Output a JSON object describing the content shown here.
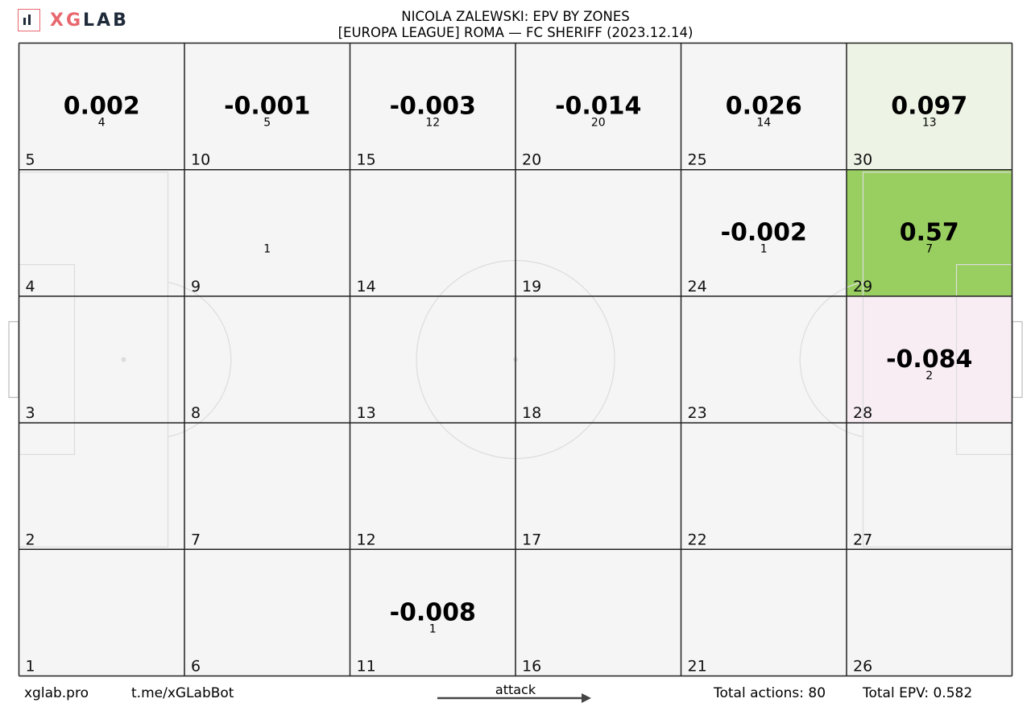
{
  "brand": {
    "logo_x": "X",
    "logo_g": "G",
    "logo_lab": "LAB"
  },
  "header": {
    "title": "NICOLA ZALEWSKI: EPV BY ZONES",
    "subtitle": "[EUROPA LEAGUE] ROMA —  FC SHERIFF (2023.12.14)"
  },
  "footer": {
    "site": "xglab.pro",
    "bot": "t.me/xGLabBot",
    "attack": "attack",
    "total_actions": "Total actions: 80",
    "total_epv": "Total EPV: 0.582"
  },
  "colors": {
    "neutral_cell": "#f5f5f5",
    "positive_light": "#eef4e5",
    "positive_strong": "#99cf61",
    "negative_light": "#f7edf3",
    "grid_line": "#222222",
    "pitch_line": "#dcdcdc"
  },
  "chart_data": {
    "type": "heatmap",
    "title": "NICOLA ZALEWSKI: EPV BY ZONES",
    "subtitle": "[EUROPA LEAGUE] ROMA —  FC SHERIFF (2023.12.14)",
    "grid": {
      "columns": 6,
      "rows": 5
    },
    "zones": [
      {
        "zone": 1,
        "epv": "",
        "actions": ""
      },
      {
        "zone": 2,
        "epv": "",
        "actions": ""
      },
      {
        "zone": 3,
        "epv": "",
        "actions": ""
      },
      {
        "zone": 4,
        "epv": "",
        "actions": ""
      },
      {
        "zone": 5,
        "epv": "0.002",
        "actions": "4"
      },
      {
        "zone": 6,
        "epv": "",
        "actions": ""
      },
      {
        "zone": 7,
        "epv": "",
        "actions": ""
      },
      {
        "zone": 8,
        "epv": "",
        "actions": ""
      },
      {
        "zone": 9,
        "epv": "",
        "actions": "1"
      },
      {
        "zone": 10,
        "epv": "-0.001",
        "actions": "5"
      },
      {
        "zone": 11,
        "epv": "-0.008",
        "actions": "1"
      },
      {
        "zone": 12,
        "epv": "",
        "actions": ""
      },
      {
        "zone": 13,
        "epv": "",
        "actions": ""
      },
      {
        "zone": 14,
        "epv": "",
        "actions": ""
      },
      {
        "zone": 15,
        "epv": "-0.003",
        "actions": "12"
      },
      {
        "zone": 16,
        "epv": "",
        "actions": ""
      },
      {
        "zone": 17,
        "epv": "",
        "actions": ""
      },
      {
        "zone": 18,
        "epv": "",
        "actions": ""
      },
      {
        "zone": 19,
        "epv": "",
        "actions": ""
      },
      {
        "zone": 20,
        "epv": "-0.014",
        "actions": "20"
      },
      {
        "zone": 21,
        "epv": "",
        "actions": ""
      },
      {
        "zone": 22,
        "epv": "",
        "actions": ""
      },
      {
        "zone": 23,
        "epv": "",
        "actions": ""
      },
      {
        "zone": 24,
        "epv": "-0.002",
        "actions": "1"
      },
      {
        "zone": 25,
        "epv": "0.026",
        "actions": "14"
      },
      {
        "zone": 26,
        "epv": "",
        "actions": ""
      },
      {
        "zone": 27,
        "epv": "",
        "actions": ""
      },
      {
        "zone": 28,
        "epv": "-0.084",
        "actions": "2"
      },
      {
        "zone": 29,
        "epv": "0.57",
        "actions": "7"
      },
      {
        "zone": 30,
        "epv": "0.097",
        "actions": "13"
      }
    ]
  }
}
